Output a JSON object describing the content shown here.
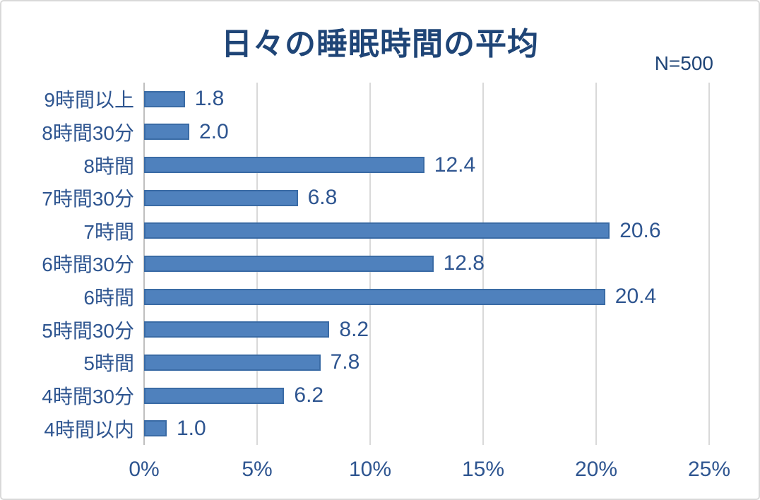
{
  "chart_data": {
    "type": "bar",
    "orientation": "horizontal",
    "title": "日々の睡眠時間の平均",
    "annotation": "N=500",
    "categories": [
      "9時間以上",
      "8時間30分",
      "8時間",
      "7時間30分",
      "7時間",
      "6時間30分",
      "6時間",
      "5時間30分",
      "5時間",
      "4時間30分",
      "4時間以内"
    ],
    "values": [
      1.8,
      2.0,
      12.4,
      6.8,
      20.6,
      12.8,
      20.4,
      8.2,
      7.8,
      6.2,
      1.0
    ],
    "value_labels": [
      "1.8",
      "2.0",
      "12.4",
      "6.8",
      "20.6",
      "12.8",
      "20.4",
      "8.2",
      "7.8",
      "6.2",
      "1.0"
    ],
    "xlabel": "",
    "ylabel": "",
    "x_ticks": [
      "0%",
      "5%",
      "10%",
      "15%",
      "20%",
      "25%"
    ],
    "x_tick_values": [
      0,
      5,
      10,
      15,
      20,
      25
    ],
    "xlim": [
      0,
      25
    ],
    "grid": "vertical",
    "legend": "none",
    "bar_color": "#4F81BD",
    "bar_border_color": "#3A6BA5",
    "gridline_color": "#D9D9D9",
    "axis_line_color": "#BFBFBF",
    "label_color": "#2E5590",
    "title_color": "#1F4577"
  }
}
